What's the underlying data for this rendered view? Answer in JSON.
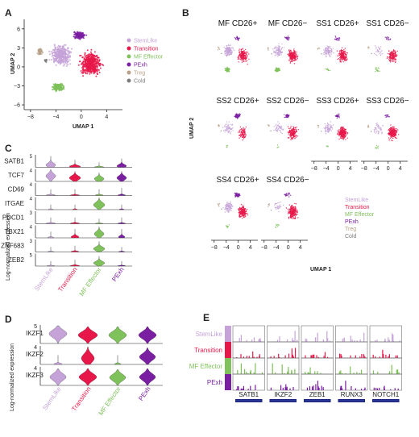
{
  "colors": {
    "StemLike": "#c5a3d8",
    "Transition": "#e8174a",
    "MF Effector": "#7fc15a",
    "PExh": "#7b1fa2",
    "Treg": "#b8a188",
    "Cold": "#7d7d7d"
  },
  "panelA": {
    "label": "A",
    "xlabel": "UMAP 1",
    "ylabel": "UMAP 2",
    "xticks": [
      "−8",
      "−4",
      "0",
      "4"
    ],
    "yticks": [
      "6",
      "3",
      "0",
      "−3",
      "−6"
    ],
    "legend": [
      "StemLike",
      "Transition",
      "MF Effector",
      "PExh",
      "Treg",
      "Cold"
    ]
  },
  "panelB": {
    "label": "B",
    "ylabel": "UMAP 2",
    "xlabel": "UMAP 1",
    "xticks": [
      "−8",
      "−4",
      "0",
      "4"
    ],
    "rows": [
      [
        "MF CD26+",
        "MF CD26−",
        "SS1 CD26+",
        "SS1 CD26−"
      ],
      [
        "SS2 CD26+",
        "SS2 CD26−",
        "SS3 CD26+",
        "SS3 CD26−"
      ],
      [
        "SS4 CD26+",
        "SS4 CD26−"
      ]
    ],
    "legend": [
      "StemLike",
      "Transition",
      "MF Effector",
      "PExh",
      "Treg",
      "Cold"
    ]
  },
  "panelC": {
    "label": "C",
    "ylabel": "Log-normalized expression",
    "genes": [
      "SATB1",
      "TCF7",
      "CD69",
      "ITGAE",
      "PDCD1",
      "TBX21",
      "ZNF683",
      "ZEB2"
    ],
    "ymax": [
      "5",
      "4",
      "4",
      "4",
      "3",
      "4",
      "3",
      "5"
    ],
    "groups": [
      "StemLike",
      "Transition",
      "MF Effector",
      "PExh"
    ]
  },
  "panelD": {
    "label": "D",
    "ylabel": "Log-normalized expression",
    "genes": [
      "IKZF1",
      "IKZF2",
      "IKZF3"
    ],
    "ymax": [
      "5",
      "4",
      "4"
    ],
    "groups": [
      "StemLike",
      "Transition",
      "MF Effector",
      "PExh"
    ]
  },
  "panelE": {
    "label": "E",
    "tracks": [
      "StemLike",
      "Transition",
      "MF Effector",
      "PExh"
    ],
    "loci": [
      "SATB1",
      "IKZF2",
      "ZEB1",
      "RUNX3",
      "NOTCH1"
    ]
  }
}
